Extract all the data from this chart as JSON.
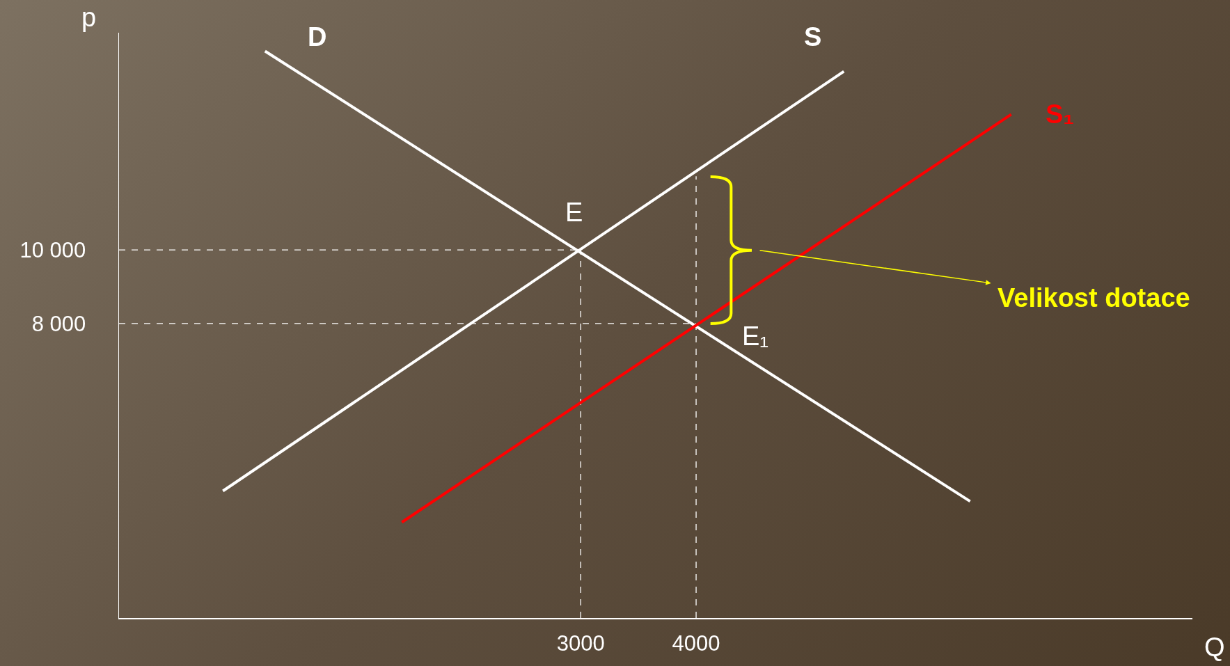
{
  "chart_data": {
    "type": "line",
    "xlabel": "Q",
    "ylabel": "p",
    "xlim": [
      -1000,
      8300
    ],
    "ylim": [
      0,
      15900
    ],
    "xticks": [
      3000,
      4000
    ],
    "yticks": [
      {
        "value": 8000,
        "label": "8 000"
      },
      {
        "value": 10000,
        "label": "10 000"
      }
    ],
    "grid": false,
    "legend": false,
    "marker": "none",
    "series": [
      {
        "name": "D",
        "color": "#ffffff",
        "x": [
          265,
          6374
        ],
        "values": [
          15400,
          3170
        ]
      },
      {
        "name": "S",
        "color": "#ffffff",
        "x": [
          -100,
          5280
        ],
        "values": [
          3450,
          14850
        ]
      },
      {
        "name": "S₁",
        "color": "#ff0000",
        "x": [
          1450,
          6730
        ],
        "values": [
          2600,
          13680
        ]
      },
      {
        "color": "#ffffff",
        "line_style": "dashed",
        "x": [
          -1000,
          3000
        ],
        "values": [
          10000,
          10000
        ]
      },
      {
        "color": "#ffffff",
        "line_style": "dashed",
        "x": [
          -1000,
          4000
        ],
        "values": [
          8000,
          8000
        ]
      },
      {
        "color": "#ffffff",
        "line_style": "dashed",
        "x": [
          3000,
          3000
        ],
        "values": [
          0,
          10000
        ]
      },
      {
        "color": "#ffffff",
        "line_style": "dashed",
        "x": [
          4000,
          4000
        ],
        "values": [
          0,
          12000
        ]
      }
    ],
    "annotations": [
      {
        "text": "E",
        "x": 3000,
        "y": 10000
      },
      {
        "text": "E₁",
        "x": 4000,
        "y": 8000
      },
      "Velikost dotace"
    ]
  }
}
